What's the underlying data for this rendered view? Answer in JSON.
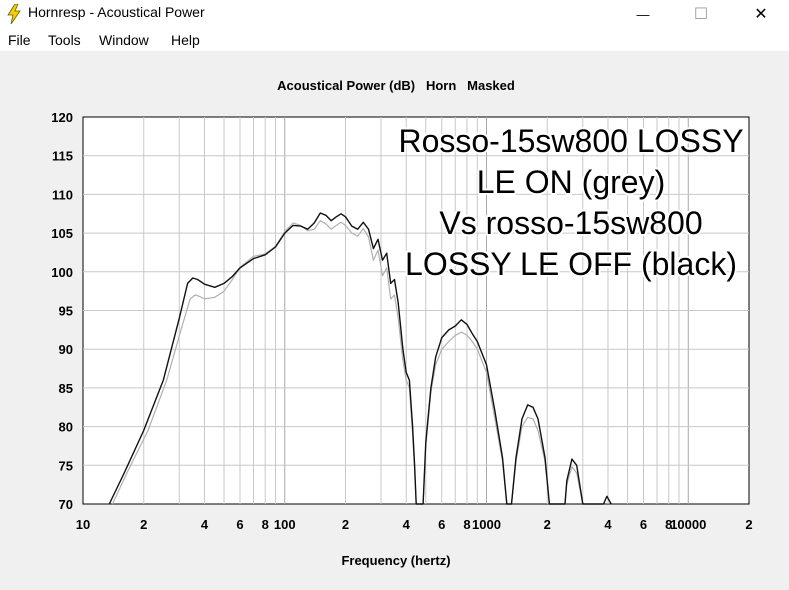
{
  "window": {
    "title": "Hornresp - Acoustical Power",
    "minimize_glyph": "—",
    "maximize_glyph": "☐",
    "close_glyph": "✕",
    "icon": "lightning-icon"
  },
  "menu": {
    "items": [
      "File",
      "Tools",
      "Window",
      "Help"
    ]
  },
  "colors": {
    "series_black": "#111111",
    "series_grey": "#b0b0b0",
    "grid": "#c8c8c8",
    "plot_bg": "#ffffff",
    "client_bg": "#f0f0f0",
    "icon_yellow": "#f5d000"
  },
  "chart_data": {
    "type": "line",
    "title": "Acoustical Power (dB)   Horn   Masked",
    "xlabel": "Frequency (hertz)",
    "ylabel": "",
    "x_scale": "log",
    "xlim": [
      10,
      20000
    ],
    "ylim": [
      70,
      120
    ],
    "yticks": [
      70,
      75,
      80,
      85,
      90,
      95,
      100,
      105,
      110,
      115,
      120
    ],
    "yticklabels": [
      "70",
      "75",
      "80",
      "85",
      "90",
      "95",
      "100",
      "105",
      "110",
      "115",
      "120"
    ],
    "xticks": [
      10,
      20,
      40,
      60,
      80,
      100,
      200,
      400,
      600,
      800,
      1000,
      2000,
      4000,
      6000,
      8000,
      10000,
      20000
    ],
    "xticklabels": [
      "10",
      "2",
      "4",
      "6",
      "8",
      "100",
      "2",
      "4",
      "6",
      "8",
      "1000",
      "2",
      "4",
      "6",
      "8",
      "10000",
      "2"
    ],
    "grid": true,
    "annotation_lines": [
      "Rosso-15sw800 LOSSY",
      "LE ON (grey)",
      "Vs rosso-15sw800",
      "LOSSY LE OFF (black)"
    ],
    "series": [
      {
        "color": "#111111",
        "points": [
          [
            13.5,
            70
          ],
          [
            16,
            74
          ],
          [
            20,
            79.5
          ],
          [
            25,
            86
          ],
          [
            30,
            94
          ],
          [
            33,
            98.5
          ],
          [
            35,
            99.2
          ],
          [
            37,
            99
          ],
          [
            40,
            98.4
          ],
          [
            45,
            98
          ],
          [
            50,
            98.5
          ],
          [
            55,
            99.4
          ],
          [
            60,
            100.5
          ],
          [
            70,
            101.7
          ],
          [
            80,
            102.2
          ],
          [
            90,
            103.2
          ],
          [
            100,
            105
          ],
          [
            110,
            106
          ],
          [
            120,
            105.9
          ],
          [
            130,
            105.5
          ],
          [
            140,
            106.3
          ],
          [
            150,
            107.6
          ],
          [
            160,
            107.3
          ],
          [
            170,
            106.6
          ],
          [
            180,
            107.1
          ],
          [
            190,
            107.5
          ],
          [
            200,
            107.1
          ],
          [
            215,
            105.9
          ],
          [
            230,
            105.5
          ],
          [
            245,
            106.4
          ],
          [
            260,
            105.5
          ],
          [
            275,
            103
          ],
          [
            290,
            104.2
          ],
          [
            305,
            101.5
          ],
          [
            320,
            102.4
          ],
          [
            335,
            98.5
          ],
          [
            350,
            99
          ],
          [
            365,
            96
          ],
          [
            385,
            90
          ],
          [
            400,
            87
          ],
          [
            415,
            86
          ],
          [
            430,
            80
          ],
          [
            440,
            75
          ],
          [
            448,
            70
          ],
          [
            485,
            70
          ],
          [
            500,
            78
          ],
          [
            530,
            85
          ],
          [
            560,
            89
          ],
          [
            600,
            91.5
          ],
          [
            650,
            92.5
          ],
          [
            700,
            93
          ],
          [
            750,
            93.8
          ],
          [
            800,
            93.2
          ],
          [
            850,
            92
          ],
          [
            900,
            91
          ],
          [
            1000,
            88
          ],
          [
            1100,
            82
          ],
          [
            1200,
            76
          ],
          [
            1260,
            70
          ],
          [
            1330,
            70
          ],
          [
            1400,
            76
          ],
          [
            1500,
            81
          ],
          [
            1600,
            82.8
          ],
          [
            1700,
            82.5
          ],
          [
            1800,
            81
          ],
          [
            1950,
            76
          ],
          [
            2050,
            70
          ],
          [
            2450,
            70
          ],
          [
            2500,
            73
          ],
          [
            2650,
            75.8
          ],
          [
            2800,
            75
          ],
          [
            3000,
            70
          ],
          [
            3800,
            70
          ],
          [
            3950,
            71
          ],
          [
            4150,
            70
          ]
        ]
      },
      {
        "color": "#b0b0b0",
        "points": [
          [
            14,
            70
          ],
          [
            16.5,
            74
          ],
          [
            21,
            79.5
          ],
          [
            26,
            86
          ],
          [
            31,
            93
          ],
          [
            34,
            96.5
          ],
          [
            36,
            97
          ],
          [
            38,
            96.8
          ],
          [
            40,
            96.5
          ],
          [
            45,
            96.7
          ],
          [
            50,
            97.5
          ],
          [
            55,
            99
          ],
          [
            60,
            100.6
          ],
          [
            70,
            102
          ],
          [
            80,
            102.3
          ],
          [
            90,
            103.3
          ],
          [
            100,
            105.2
          ],
          [
            110,
            106.3
          ],
          [
            120,
            106
          ],
          [
            130,
            105.3
          ],
          [
            140,
            105.5
          ],
          [
            150,
            106.6
          ],
          [
            160,
            106.2
          ],
          [
            170,
            105.5
          ],
          [
            180,
            106
          ],
          [
            190,
            106.4
          ],
          [
            200,
            106
          ],
          [
            215,
            105
          ],
          [
            230,
            104.6
          ],
          [
            245,
            105.6
          ],
          [
            260,
            104.5
          ],
          [
            275,
            101.5
          ],
          [
            290,
            102.8
          ],
          [
            305,
            99.5
          ],
          [
            320,
            100.5
          ],
          [
            335,
            96.5
          ],
          [
            350,
            97
          ],
          [
            365,
            94
          ],
          [
            385,
            88.5
          ],
          [
            400,
            86
          ],
          [
            415,
            85
          ],
          [
            430,
            79
          ],
          [
            440,
            74.5
          ],
          [
            448,
            70
          ],
          [
            485,
            70
          ],
          [
            500,
            77.5
          ],
          [
            530,
            84.5
          ],
          [
            560,
            88
          ],
          [
            600,
            90
          ],
          [
            650,
            91
          ],
          [
            700,
            91.8
          ],
          [
            750,
            92.2
          ],
          [
            800,
            91.8
          ],
          [
            850,
            91
          ],
          [
            900,
            90
          ],
          [
            1000,
            87
          ],
          [
            1100,
            81
          ],
          [
            1200,
            75.5
          ],
          [
            1260,
            70
          ],
          [
            1330,
            70
          ],
          [
            1400,
            75.5
          ],
          [
            1500,
            80
          ],
          [
            1600,
            81.2
          ],
          [
            1700,
            81
          ],
          [
            1800,
            79.5
          ],
          [
            1950,
            75.5
          ],
          [
            2050,
            70
          ],
          [
            2450,
            70
          ],
          [
            2500,
            72.5
          ],
          [
            2650,
            74.8
          ],
          [
            2800,
            74
          ],
          [
            3000,
            70
          ]
        ]
      }
    ]
  }
}
